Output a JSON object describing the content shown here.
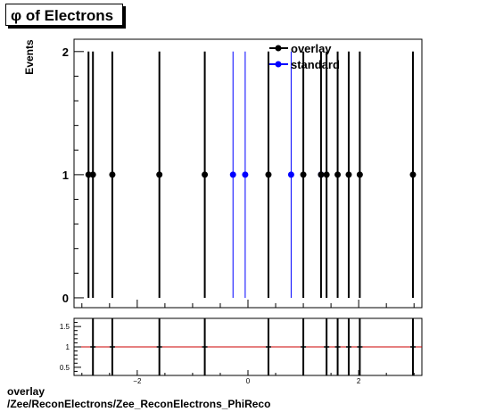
{
  "title": "φ of Electrons",
  "footer": {
    "line1": "overlay",
    "line2": "/Zee/ReconElectrons/Zee_ReconElectrons_PhiReco"
  },
  "chart_data": [
    {
      "type": "scatter",
      "title": "φ of Electrons",
      "ylabel": "Events",
      "xlabel": "",
      "xlim": [
        -3.1416,
        3.1416
      ],
      "ylim": [
        -0.08,
        2.1
      ],
      "yticks": [
        0,
        1,
        2
      ],
      "legend_placement": "top-right",
      "series": [
        {
          "name": "overlay",
          "color": "#000000",
          "x": [
            -2.88,
            -2.8,
            -2.45,
            -1.6,
            -0.78,
            0.37,
            1.0,
            1.32,
            1.42,
            1.62,
            1.82,
            2.02,
            2.98
          ],
          "y": [
            1,
            1,
            1,
            1,
            1,
            1,
            1,
            1,
            1,
            1,
            1,
            1,
            1
          ]
        },
        {
          "name": "standard",
          "color": "#0000ff",
          "x": [
            -0.27,
            -0.05,
            0.78,
            1.32
          ],
          "y": [
            1,
            1,
            1,
            1
          ]
        }
      ]
    },
    {
      "type": "scatter",
      "title": "",
      "ylabel": "",
      "xlabel": "",
      "xlim": [
        -3.1416,
        3.1416
      ],
      "ylim": [
        0.3,
        1.7
      ],
      "yticks": [
        "0.5",
        "1",
        "1.5"
      ],
      "xticks": [
        "-2",
        "0",
        "2"
      ],
      "reference_line": 1,
      "reference_color": "#cc0000",
      "series": [
        {
          "name": "",
          "color": "#000000",
          "x": [
            -2.8,
            -2.45,
            -1.6,
            -0.78,
            0.37,
            1.0,
            1.42,
            1.62,
            1.82,
            2.02,
            2.98
          ],
          "y": [
            1,
            1,
            1,
            1,
            1,
            1,
            1,
            1,
            1,
            1,
            1
          ]
        }
      ]
    }
  ]
}
